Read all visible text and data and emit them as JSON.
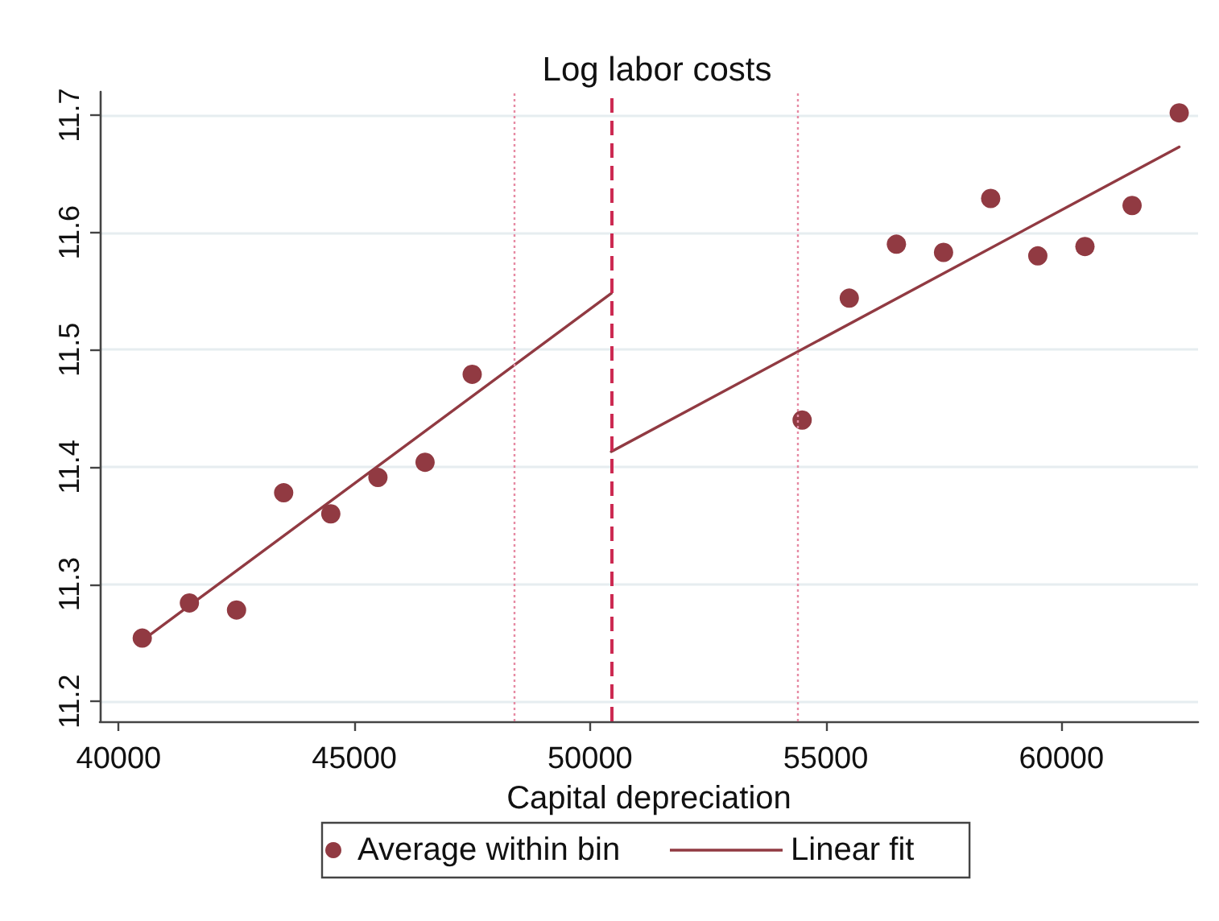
{
  "chart_data": {
    "type": "scatter",
    "title": "Log labor costs",
    "xlabel": "Capital depreciation",
    "xlim": [
      39600,
      62900
    ],
    "ylim": [
      11.183,
      11.72
    ],
    "xticks": [
      40000,
      45000,
      50000,
      55000,
      60000
    ],
    "yticks": [
      11.2,
      11.3,
      11.4,
      11.5,
      11.6,
      11.7
    ],
    "grid": "y",
    "legend": "bottom",
    "series": [
      {
        "name": "Average within bin",
        "marker": "circle",
        "color": "#913a42",
        "x": [
          40500,
          41500,
          42500,
          43500,
          44500,
          45500,
          46500,
          47500,
          54500,
          55500,
          56500,
          57500,
          58500,
          59500,
          60500,
          61500,
          62500
        ],
        "values": [
          11.254,
          11.284,
          11.278,
          11.378,
          11.36,
          11.391,
          11.404,
          11.479,
          11.44,
          11.544,
          11.59,
          11.583,
          11.629,
          11.58,
          11.588,
          11.623,
          11.702
        ]
      },
      {
        "name": "Linear fit",
        "type": "line",
        "marker": "none",
        "line_style": "solid",
        "color": "#913a42",
        "x": [
          40500,
          50450
        ],
        "values": [
          11.252,
          11.548
        ]
      },
      {
        "type": "line",
        "marker": "none",
        "line_style": "solid",
        "color": "#913a42",
        "x": [
          50450,
          62500
        ],
        "values": [
          11.413,
          11.673
        ]
      }
    ],
    "ref_lines": [
      {
        "axis": "x",
        "value": 50450,
        "color": "#cc2a52",
        "line_style": "dashed"
      },
      {
        "axis": "x",
        "value": 48400,
        "color": "#e68aa3",
        "line_style": "dotted"
      },
      {
        "axis": "x",
        "value": 54400,
        "color": "#e68aa3",
        "line_style": "dotted"
      }
    ]
  }
}
